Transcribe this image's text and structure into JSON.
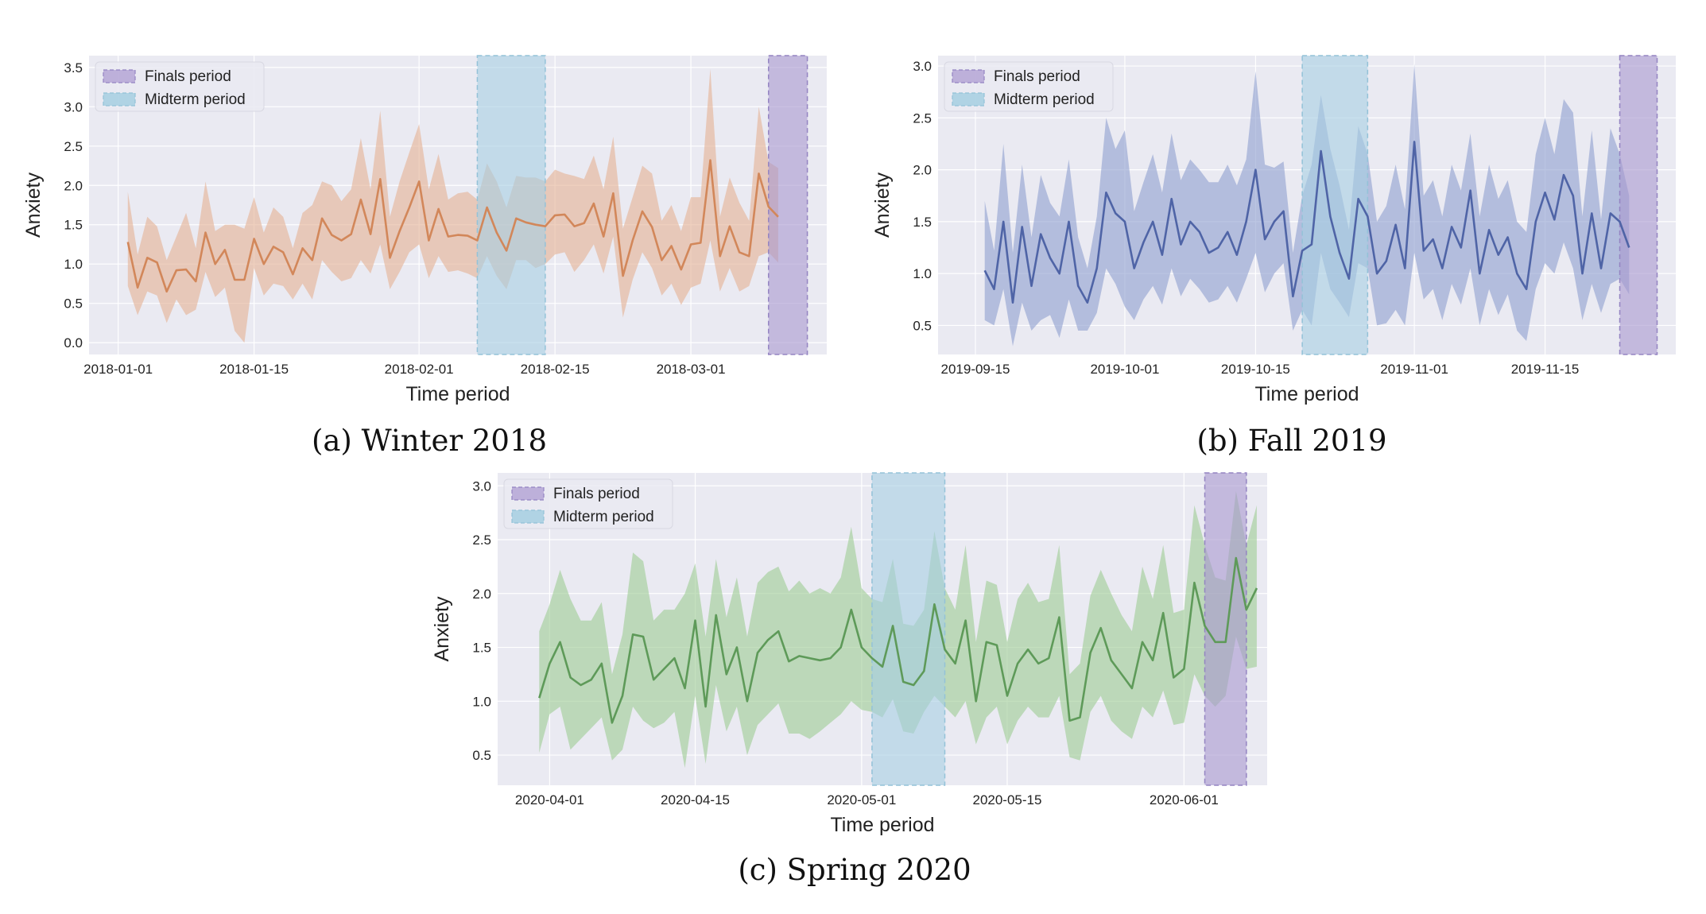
{
  "figure": {
    "captions": [
      "(a) Winter 2018",
      "(b) Fall 2019",
      "(c) Spring 2020"
    ]
  },
  "chart_data": [
    {
      "type": "line",
      "panel": "a",
      "caption": "(a) Winter 2018",
      "xlabel": "Time period",
      "ylabel": "Anxiety",
      "x_start": "2018-01-02",
      "xlim": [
        "2017-12-29",
        "2018-03-15"
      ],
      "x_ticks": [
        "2018-01-01",
        "2018-01-15",
        "2018-02-01",
        "2018-02-15",
        "2018-03-01"
      ],
      "ylim": [
        -0.15,
        3.65
      ],
      "y_ticks": [
        "0.0",
        "0.5",
        "1.0",
        "1.5",
        "2.0",
        "2.5",
        "3.0",
        "3.5"
      ],
      "grid": true,
      "legend_position": "top-left",
      "legend": [
        {
          "label": "Finals period",
          "color": "#b5a6d6"
        },
        {
          "label": "Midterm period",
          "color": "#a6cfe2"
        }
      ],
      "shaded_periods": [
        {
          "name": "Midterm period",
          "start": "2018-02-07",
          "end": "2018-02-14"
        },
        {
          "name": "Finals period",
          "start": "2018-03-09",
          "end": "2018-03-13"
        }
      ],
      "line_color": "#d2875a",
      "band_color": "#e4b192",
      "values": [
        1.28,
        0.7,
        1.08,
        1.02,
        0.65,
        0.92,
        0.93,
        0.78,
        1.4,
        1.0,
        1.18,
        0.8,
        0.8,
        1.32,
        1.0,
        1.22,
        1.15,
        0.87,
        1.2,
        1.05,
        1.58,
        1.37,
        1.3,
        1.38,
        1.82,
        1.38,
        2.08,
        1.08,
        1.42,
        1.72,
        2.05,
        1.3,
        1.7,
        1.35,
        1.37,
        1.36,
        1.3,
        1.72,
        1.4,
        1.17,
        1.58,
        1.53,
        1.5,
        1.48,
        1.62,
        1.63,
        1.48,
        1.52,
        1.77,
        1.35,
        1.9,
        0.85,
        1.3,
        1.67,
        1.47,
        1.05,
        1.23,
        0.93,
        1.25,
        1.27,
        2.32,
        1.1,
        1.48,
        1.15,
        1.1,
        2.15,
        1.73,
        1.6
      ],
      "lower": [
        0.72,
        0.35,
        0.65,
        0.6,
        0.25,
        0.55,
        0.35,
        0.42,
        0.9,
        0.58,
        0.7,
        0.15,
        0.0,
        0.95,
        0.6,
        0.75,
        0.72,
        0.55,
        0.75,
        0.55,
        1.05,
        0.9,
        0.78,
        0.82,
        1.05,
        0.88,
        1.25,
        0.68,
        0.9,
        1.15,
        1.25,
        0.82,
        1.1,
        0.9,
        0.92,
        0.88,
        0.82,
        1.1,
        0.85,
        0.68,
        1.05,
        1.05,
        0.95,
        1.0,
        1.12,
        1.15,
        0.9,
        1.05,
        1.25,
        0.88,
        1.35,
        0.32,
        0.8,
        1.15,
        0.95,
        0.6,
        0.75,
        0.48,
        0.7,
        0.75,
        1.3,
        0.65,
        0.95,
        0.65,
        0.72,
        1.1,
        1.15,
        1.02
      ],
      "upper": [
        1.92,
        1.12,
        1.6,
        1.48,
        1.05,
        1.35,
        1.65,
        1.2,
        2.05,
        1.42,
        1.5,
        1.5,
        1.45,
        1.85,
        1.4,
        1.72,
        1.6,
        1.2,
        1.65,
        1.75,
        2.05,
        2.0,
        1.8,
        1.95,
        2.6,
        1.95,
        2.95,
        1.6,
        2.05,
        2.42,
        2.78,
        1.95,
        2.4,
        1.82,
        1.9,
        1.92,
        1.82,
        2.28,
        2.05,
        1.72,
        2.12,
        2.1,
        2.1,
        2.05,
        2.2,
        2.15,
        2.12,
        2.08,
        2.38,
        1.95,
        2.62,
        1.45,
        1.85,
        2.25,
        2.15,
        1.55,
        1.75,
        1.42,
        1.85,
        1.85,
        3.48,
        1.6,
        2.1,
        1.78,
        1.55,
        3.0,
        2.3,
        2.22
      ]
    },
    {
      "type": "line",
      "panel": "b",
      "caption": "(b) Fall 2019",
      "xlabel": "Time period",
      "ylabel": "Anxiety",
      "x_start": "2019-09-16",
      "xlim": [
        "2019-09-11",
        "2019-11-29"
      ],
      "x_ticks": [
        "2019-09-15",
        "2019-10-01",
        "2019-10-15",
        "2019-11-01",
        "2019-11-15"
      ],
      "ylim": [
        0.22,
        3.1
      ],
      "y_ticks": [
        "0.5",
        "1.0",
        "1.5",
        "2.0",
        "2.5",
        "3.0"
      ],
      "grid": true,
      "legend_position": "top-left",
      "legend": [
        {
          "label": "Finals period",
          "color": "#b5a6d6"
        },
        {
          "label": "Midterm period",
          "color": "#a6cfe2"
        }
      ],
      "shaded_periods": [
        {
          "name": "Midterm period",
          "start": "2019-10-20",
          "end": "2019-10-27"
        },
        {
          "name": "Finals period",
          "start": "2019-11-23",
          "end": "2019-11-27"
        }
      ],
      "line_color": "#4f64a6",
      "band_color": "#8d9fce",
      "values": [
        1.03,
        0.85,
        1.5,
        0.72,
        1.45,
        0.88,
        1.38,
        1.15,
        1.0,
        1.5,
        0.88,
        0.72,
        1.05,
        1.78,
        1.58,
        1.5,
        1.05,
        1.3,
        1.5,
        1.18,
        1.72,
        1.28,
        1.5,
        1.4,
        1.2,
        1.25,
        1.4,
        1.18,
        1.5,
        2.0,
        1.33,
        1.5,
        1.6,
        0.78,
        1.22,
        1.28,
        2.18,
        1.55,
        1.2,
        0.95,
        1.72,
        1.55,
        1.0,
        1.12,
        1.47,
        1.05,
        2.27,
        1.22,
        1.33,
        1.05,
        1.45,
        1.25,
        1.8,
        1.0,
        1.42,
        1.18,
        1.35,
        1.0,
        0.85,
        1.5,
        1.78,
        1.52,
        1.95,
        1.75,
        1.0,
        1.58,
        1.05,
        1.58,
        1.5,
        1.25
      ],
      "lower": [
        0.55,
        0.5,
        0.85,
        0.3,
        0.72,
        0.45,
        0.55,
        0.6,
        0.38,
        0.75,
        0.45,
        0.45,
        0.62,
        1.05,
        0.9,
        0.68,
        0.55,
        0.75,
        0.88,
        0.7,
        1.05,
        0.78,
        0.95,
        0.85,
        0.72,
        0.75,
        0.88,
        0.72,
        0.95,
        1.2,
        0.82,
        1.0,
        1.1,
        0.45,
        0.65,
        0.5,
        1.2,
        0.85,
        0.72,
        0.58,
        1.1,
        1.05,
        0.5,
        0.52,
        0.65,
        0.5,
        1.2,
        0.75,
        0.85,
        0.55,
        0.9,
        0.7,
        1.05,
        0.5,
        0.85,
        0.6,
        0.8,
        0.45,
        0.35,
        0.85,
        1.1,
        1.0,
        1.3,
        1.05,
        0.55,
        0.9,
        0.62,
        0.9,
        0.95,
        0.8
      ],
      "upper": [
        1.7,
        1.22,
        2.25,
        1.2,
        2.05,
        1.35,
        1.95,
        1.68,
        1.55,
        2.1,
        1.35,
        1.05,
        1.55,
        2.5,
        2.2,
        2.38,
        1.6,
        1.88,
        2.15,
        1.78,
        2.35,
        1.9,
        2.1,
        2.0,
        1.88,
        1.88,
        2.05,
        1.85,
        2.1,
        2.95,
        2.05,
        2.02,
        2.08,
        1.2,
        1.75,
        2.05,
        2.72,
        2.2,
        1.85,
        1.42,
        2.42,
        2.15,
        1.5,
        1.65,
        2.05,
        1.62,
        3.02,
        1.75,
        1.9,
        1.55,
        2.05,
        1.8,
        2.35,
        1.55,
        2.05,
        1.72,
        1.9,
        1.5,
        1.4,
        2.15,
        2.5,
        2.15,
        2.68,
        2.55,
        1.55,
        2.38,
        1.52,
        2.4,
        2.15,
        1.75
      ]
    },
    {
      "type": "line",
      "panel": "c",
      "caption": "(c) Spring 2020",
      "xlabel": "Time period",
      "ylabel": "Anxiety",
      "x_start": "2020-03-31",
      "xlim": [
        "2020-03-27",
        "2020-06-09"
      ],
      "x_ticks": [
        "2020-04-01",
        "2020-04-15",
        "2020-05-01",
        "2020-05-15",
        "2020-06-01"
      ],
      "ylim": [
        0.22,
        3.12
      ],
      "y_ticks": [
        "0.5",
        "1.0",
        "1.5",
        "2.0",
        "2.5",
        "3.0"
      ],
      "grid": true,
      "legend_position": "top-left",
      "legend": [
        {
          "label": "Finals period",
          "color": "#b5a6d6"
        },
        {
          "label": "Midterm period",
          "color": "#a6cfe2"
        }
      ],
      "shaded_periods": [
        {
          "name": "Midterm period",
          "start": "2020-05-02",
          "end": "2020-05-09"
        },
        {
          "name": "Finals period",
          "start": "2020-06-03",
          "end": "2020-06-07"
        }
      ],
      "line_color": "#5e9a59",
      "band_color": "#9ccb92",
      "values": [
        1.03,
        1.35,
        1.55,
        1.22,
        1.15,
        1.2,
        1.35,
        0.8,
        1.05,
        1.62,
        1.6,
        1.2,
        1.3,
        1.4,
        1.12,
        1.75,
        0.95,
        1.8,
        1.25,
        1.5,
        1.0,
        1.45,
        1.57,
        1.65,
        1.37,
        1.42,
        1.4,
        1.38,
        1.4,
        1.5,
        1.85,
        1.5,
        1.4,
        1.32,
        1.7,
        1.18,
        1.15,
        1.28,
        1.9,
        1.48,
        1.35,
        1.75,
        1.0,
        1.55,
        1.52,
        1.05,
        1.35,
        1.48,
        1.35,
        1.4,
        1.78,
        0.82,
        0.85,
        1.45,
        1.68,
        1.38,
        1.25,
        1.12,
        1.55,
        1.38,
        1.82,
        1.22,
        1.3,
        2.1,
        1.7,
        1.55,
        1.55,
        2.33,
        1.85,
        2.05
      ],
      "lower": [
        0.52,
        0.88,
        0.95,
        0.55,
        0.65,
        0.75,
        0.85,
        0.45,
        0.55,
        0.95,
        0.82,
        0.75,
        0.8,
        0.9,
        0.38,
        1.05,
        0.42,
        1.15,
        0.72,
        0.95,
        0.5,
        0.78,
        0.88,
        0.98,
        0.7,
        0.7,
        0.65,
        0.72,
        0.8,
        0.88,
        1.0,
        0.92,
        0.9,
        0.85,
        1.02,
        0.72,
        0.7,
        0.9,
        1.05,
        0.95,
        0.85,
        1.0,
        0.6,
        0.85,
        0.95,
        0.6,
        0.82,
        0.95,
        0.85,
        0.85,
        1.05,
        0.48,
        0.45,
        0.9,
        1.05,
        0.82,
        0.72,
        0.65,
        0.95,
        0.85,
        1.1,
        0.78,
        0.8,
        1.25,
        1.05,
        0.95,
        1.05,
        1.6,
        1.3,
        1.32
      ],
      "upper": [
        1.65,
        1.9,
        2.22,
        1.95,
        1.75,
        1.75,
        1.92,
        1.25,
        1.62,
        2.38,
        2.3,
        1.75,
        1.85,
        1.85,
        2.0,
        2.28,
        1.6,
        2.32,
        1.78,
        2.15,
        1.6,
        2.1,
        2.2,
        2.25,
        2.02,
        2.12,
        2.0,
        2.05,
        2.0,
        2.15,
        2.62,
        2.05,
        1.95,
        1.92,
        2.32,
        1.72,
        1.7,
        1.85,
        2.58,
        2.05,
        1.85,
        2.45,
        1.55,
        2.12,
        2.08,
        1.55,
        1.95,
        2.1,
        1.92,
        1.95,
        2.45,
        1.25,
        1.35,
        1.98,
        2.22,
        2.0,
        1.8,
        1.65,
        2.25,
        1.95,
        2.45,
        1.82,
        1.85,
        2.82,
        2.45,
        2.15,
        2.12,
        2.95,
        2.45,
        2.82
      ]
    }
  ]
}
